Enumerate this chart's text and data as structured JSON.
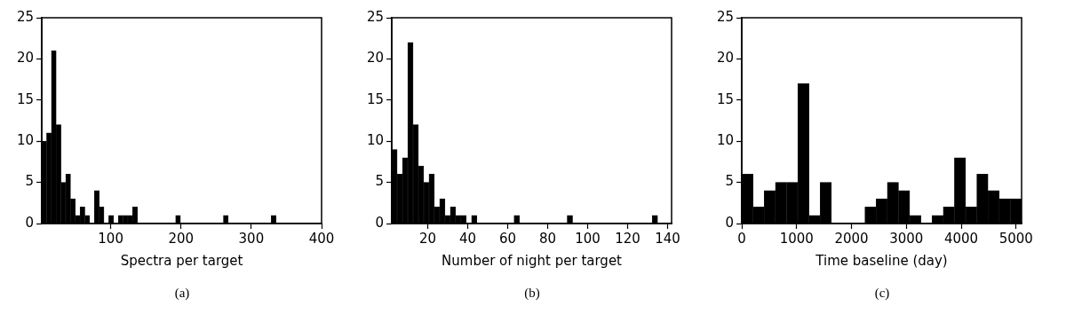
{
  "chart_data": [
    {
      "type": "histogram",
      "xlabel": "Spectra per target",
      "color": "#000000",
      "grid": false,
      "annotations": [
        "(a)"
      ],
      "xlim": [
        2,
        400
      ],
      "xticks": [
        100,
        200,
        300,
        400
      ],
      "ylim": [
        0,
        25
      ],
      "yticks": [
        0,
        5,
        10,
        15,
        20,
        25
      ],
      "bins": [
        2,
        8.8,
        15.6,
        22.4,
        29.2,
        36,
        42.8,
        49.6,
        56.4,
        63.2,
        70,
        76.8,
        83.6,
        90.4,
        97.2,
        104,
        110.8,
        117.6,
        124.4,
        131.2,
        138,
        144.8,
        151.6,
        158.4,
        165.2,
        172,
        178.8,
        185.6,
        192.4,
        199.2,
        206,
        212.8,
        219.6,
        226.4,
        233.2,
        240,
        246.8,
        253.6,
        260.4,
        267.2,
        274,
        280.8,
        287.6,
        294.4,
        301.2,
        308,
        314.8,
        321.6,
        328.4,
        335.2
      ],
      "values": [
        10,
        11,
        21,
        12,
        5,
        6,
        3,
        1,
        2,
        1,
        0,
        4,
        2,
        0,
        1,
        0,
        1,
        1,
        1,
        2,
        0,
        0,
        0,
        0,
        0,
        0,
        0,
        0,
        1,
        0,
        0,
        0,
        0,
        0,
        0,
        0,
        0,
        0,
        1,
        0,
        0,
        0,
        0,
        0,
        0,
        0,
        0,
        0,
        1
      ]
    },
    {
      "type": "histogram",
      "xlabel": "Number of night per target",
      "color": "#000000",
      "grid": false,
      "annotations": [
        "(b)"
      ],
      "xlim": [
        2,
        142
      ],
      "xticks": [
        20,
        40,
        60,
        80,
        100,
        120,
        140
      ],
      "ylim": [
        0,
        25
      ],
      "yticks": [
        0,
        5,
        10,
        15,
        20,
        25
      ],
      "bins": [
        2,
        4.66,
        7.32,
        9.98,
        12.64,
        15.3,
        17.96,
        20.62,
        23.28,
        25.94,
        28.6,
        31.26,
        33.92,
        36.58,
        39.24,
        41.9,
        44.56,
        47.22,
        49.88,
        52.54,
        55.2,
        57.86,
        60.52,
        63.18,
        65.84,
        68.5,
        71.16,
        73.82,
        76.48,
        79.14,
        81.8,
        84.46,
        87.12,
        89.78,
        92.44,
        95.1,
        97.76,
        100.42,
        103.08,
        105.74,
        108.4,
        111.06,
        113.72,
        116.38,
        119.04,
        121.7,
        124.36,
        127.02,
        129.68,
        132.34,
        135
      ],
      "values": [
        9,
        6,
        8,
        22,
        12,
        7,
        5,
        6,
        2,
        3,
        1,
        2,
        1,
        1,
        0,
        1,
        0,
        0,
        0,
        0,
        0,
        0,
        0,
        1,
        0,
        0,
        0,
        0,
        0,
        0,
        0,
        0,
        0,
        1,
        0,
        0,
        0,
        0,
        0,
        0,
        0,
        0,
        0,
        0,
        0,
        0,
        0,
        0,
        0,
        1
      ]
    },
    {
      "type": "histogram",
      "xlabel": "Time baseline (day)",
      "color": "#000000",
      "grid": false,
      "annotations": [
        "(c)"
      ],
      "xlim": [
        0,
        5100
      ],
      "xticks": [
        0,
        1000,
        2000,
        3000,
        4000,
        5000
      ],
      "ylim": [
        0,
        25
      ],
      "yticks": [
        0,
        5,
        10,
        15,
        20,
        25
      ],
      "bins": [
        0,
        204,
        408,
        612,
        816,
        1020,
        1224,
        1428,
        1632,
        1836,
        2040,
        2244,
        2448,
        2652,
        2856,
        3060,
        3264,
        3468,
        3672,
        3876,
        4080,
        4284,
        4488,
        4692,
        4896,
        5100
      ],
      "values": [
        6,
        2,
        4,
        5,
        5,
        17,
        1,
        5,
        0,
        0,
        0,
        2,
        3,
        5,
        4,
        1,
        0,
        1,
        2,
        8,
        2,
        6,
        4,
        3,
        3
      ]
    }
  ]
}
